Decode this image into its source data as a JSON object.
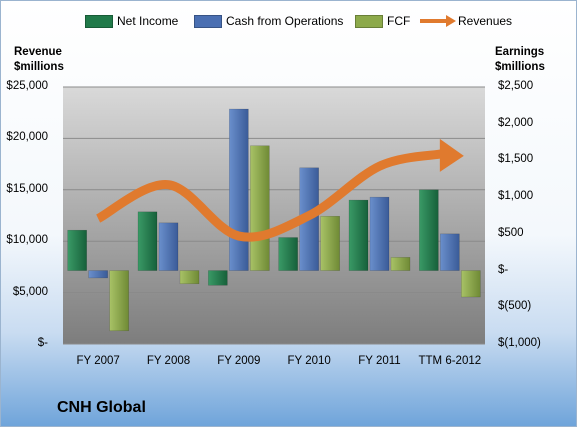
{
  "colors": {
    "net_income": "#217a4a",
    "cash_ops": "#4a6fb2",
    "fcf": "#8daa4b",
    "revenues": "#e07a2e"
  },
  "legend": {
    "net_income": "Net Income",
    "cash_ops": "Cash from Operations",
    "fcf": "FCF",
    "revenues": "Revenues"
  },
  "left_axis_title": [
    "Revenue",
    "$millions"
  ],
  "right_axis_title": [
    "Earnings",
    "$millions"
  ],
  "footer": "CNH Global",
  "chart_data": {
    "type": "bar",
    "categories": [
      "FY 2007",
      "FY 2008",
      "FY 2009",
      "FY 2010",
      "FY 2011",
      "TTM 6-2012"
    ],
    "left_axis": {
      "label": "Revenue $millions",
      "ylim": [
        0,
        25000
      ],
      "ticks": [
        "$-",
        "$5,000",
        "$10,000",
        "$15,000",
        "$20,000",
        "$25,000"
      ]
    },
    "right_axis": {
      "label": "Earnings $millions",
      "ylim": [
        -1000,
        2500
      ],
      "ticks": [
        "$(1,000)",
        "$(500)",
        "$-",
        "$500",
        "$1,000",
        "$1,500",
        "$2,000",
        "$2,500"
      ]
    },
    "series": [
      {
        "name": "Net Income",
        "axis": "right",
        "kind": "bar",
        "values": [
          550,
          800,
          -200,
          450,
          960,
          1100
        ]
      },
      {
        "name": "Cash from Operations",
        "axis": "right",
        "kind": "bar",
        "values": [
          -100,
          650,
          2200,
          1400,
          1000,
          500
        ]
      },
      {
        "name": "FCF",
        "axis": "right",
        "kind": "bar",
        "values": [
          -820,
          -180,
          1700,
          740,
          180,
          -360
        ]
      },
      {
        "name": "Revenues",
        "axis": "left",
        "kind": "line",
        "values": [
          12200,
          15500,
          10500,
          12500,
          17300,
          18500
        ]
      }
    ],
    "grid": true,
    "legend_position": "top"
  }
}
